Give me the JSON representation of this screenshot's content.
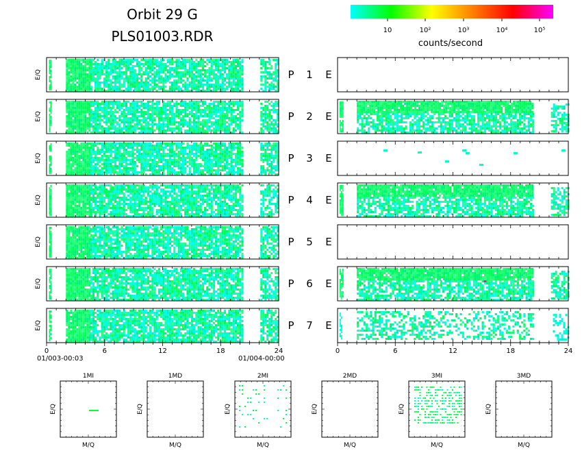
{
  "header": {
    "title_line1": "Orbit 29 G",
    "title_line2": "PLS01003.RDR"
  },
  "colorbar": {
    "colors": [
      "#00ffff",
      "#00ff00",
      "#ffff00",
      "#ff8000",
      "#ff0000",
      "#ff00ff"
    ],
    "tick_labels": [
      "10",
      "10²",
      "10³",
      "10⁴",
      "10⁵"
    ],
    "label": "counts/second"
  },
  "chart_data": [
    {
      "type": "heatmap",
      "description_key": "left column P1-P7 spectrograms",
      "ylabel": "E/Q",
      "x_ticks": [
        "0",
        "6",
        "12",
        "18",
        "24"
      ],
      "x_range": [
        0,
        24
      ],
      "start_label": "01/003-00:03",
      "end_label": "01/004-00:00",
      "rows": [
        "P 1 E",
        "P 2 E",
        "P 3 E",
        "P 4 E",
        "P 5 E",
        "P 6 E",
        "P 7 E"
      ],
      "coverage_hours": [
        [
          0.2,
          0.4
        ],
        [
          2.0,
          20.3
        ],
        [
          22.2,
          24.0
        ]
      ],
      "dominant_level": "10-10² counts/second"
    },
    {
      "type": "heatmap",
      "description_key": "right column P1-P7 spectrograms",
      "x_ticks": [
        "0",
        "6",
        "12",
        "18",
        "24"
      ],
      "x_range": [
        0,
        24
      ],
      "rows": [
        "P 1 E",
        "P 2 E",
        "P 3 E",
        "P 4 E",
        "P 5 E",
        "P 6 E",
        "P 7 E"
      ],
      "row_fill": [
        "empty",
        "dense",
        "sparse",
        "dense",
        "empty",
        "dense",
        "medium"
      ],
      "peak_level": "10³-10⁴ counts/second (P 6, ~15 h)"
    },
    {
      "type": "scatter",
      "description_key": "mass-per-charge panels",
      "xlabel": "M/Q",
      "ylabel": "E/Q",
      "panels": [
        "1MI",
        "1MD",
        "2MI",
        "2MD",
        "3MI",
        "3MD"
      ],
      "panel_fill": [
        "tiny",
        "empty",
        "sparse",
        "empty",
        "dense",
        "empty"
      ]
    }
  ],
  "labels": {
    "eq": "E/Q",
    "mq": "M/Q",
    "p": "P",
    "e": "E"
  }
}
